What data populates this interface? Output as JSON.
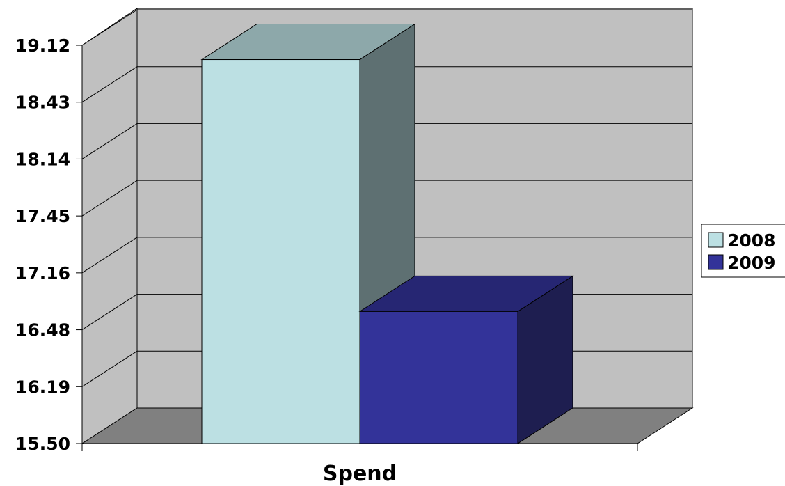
{
  "chart_data": {
    "type": "bar",
    "title": "",
    "xlabel": "",
    "ylabel": "",
    "categories": [
      "Spend"
    ],
    "series": [
      {
        "name": "2008",
        "values": [
          18.99
        ],
        "color": "#BCE0E3"
      },
      {
        "name": "2009",
        "values": [
          16.7
        ],
        "color": "#333399"
      }
    ],
    "y_tick_labels": [
      "15.50",
      "16.19",
      "16.48",
      "17.16",
      "17.45",
      "18.14",
      "18.43",
      "19.12"
    ],
    "ylim": [
      15.5,
      19.12
    ],
    "grid": true,
    "legend_position": "right",
    "three_d": true,
    "wall_color": "#C0C0C0",
    "floor_color": "#808080"
  }
}
